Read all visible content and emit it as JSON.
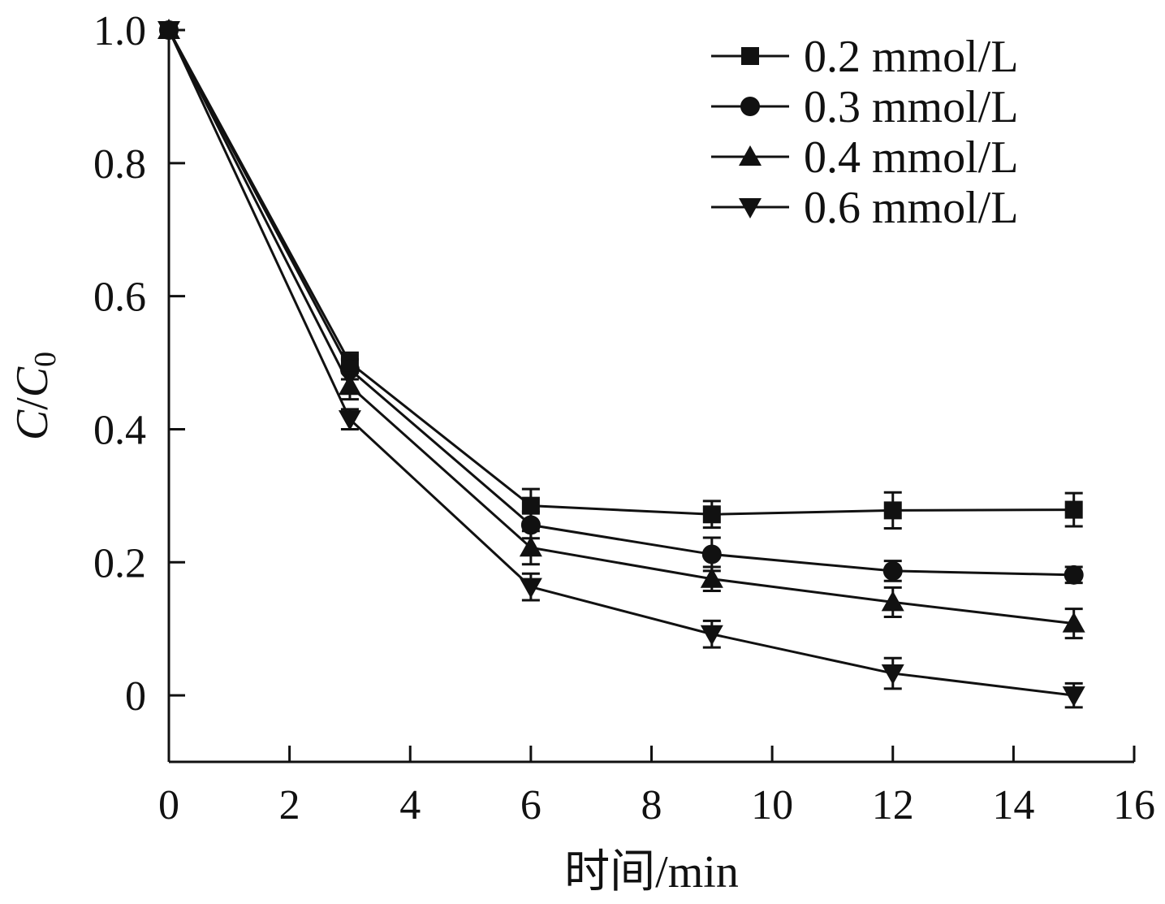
{
  "chart_data": {
    "type": "line",
    "xlabel": "时间/min",
    "ylabel_main": "C",
    "ylabel_sep": "/",
    "ylabel_base": "C",
    "ylabel_sub": "0",
    "xlim": [
      0,
      16
    ],
    "ylim": [
      -0.1,
      1.0
    ],
    "xticks": [
      0,
      2,
      4,
      6,
      8,
      10,
      12,
      14,
      16
    ],
    "yticks": [
      0,
      0.2,
      0.4,
      0.6,
      0.8,
      1.0
    ],
    "xtick_labels": [
      "0",
      "2",
      "4",
      "6",
      "8",
      "10",
      "12",
      "14",
      "16"
    ],
    "ytick_labels": [
      "0",
      "0.2",
      "0.4",
      "0.6",
      "0.8",
      "1.0"
    ],
    "legend_position": "top-right",
    "grid": false,
    "x": [
      0,
      3,
      6,
      9,
      12,
      15
    ],
    "series": [
      {
        "name": "0.2 mmol/L",
        "marker": "square",
        "values": [
          1.0,
          0.5,
          0.285,
          0.272,
          0.278,
          0.279
        ],
        "errors": [
          0.005,
          0.015,
          0.025,
          0.02,
          0.027,
          0.025
        ]
      },
      {
        "name": "0.3 mmol/L",
        "marker": "circle",
        "values": [
          1.0,
          0.49,
          0.256,
          0.212,
          0.187,
          0.181
        ],
        "errors": [
          0.005,
          0.015,
          0.02,
          0.025,
          0.015,
          0.012
        ]
      },
      {
        "name": "0.4 mmol/L",
        "marker": "triangle-up",
        "values": [
          1.0,
          0.465,
          0.222,
          0.175,
          0.14,
          0.108
        ],
        "errors": [
          0.005,
          0.02,
          0.025,
          0.018,
          0.022,
          0.022
        ]
      },
      {
        "name": "0.6 mmol/L",
        "marker": "triangle-down",
        "values": [
          1.0,
          0.415,
          0.163,
          0.092,
          0.033,
          0.0
        ],
        "errors": [
          0.005,
          0.015,
          0.02,
          0.02,
          0.023,
          0.018
        ]
      }
    ]
  }
}
